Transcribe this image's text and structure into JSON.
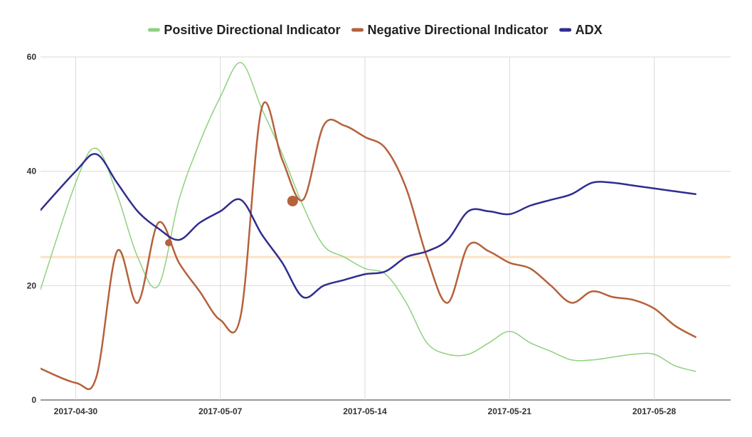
{
  "chart_data": {
    "type": "line",
    "title": "",
    "xlabel": "",
    "ylabel": "",
    "ylim": [
      0,
      60
    ],
    "y_ticks": [
      0,
      20,
      40,
      60
    ],
    "x_range": [
      -1.7,
      31.7
    ],
    "x_ticks": [
      {
        "label": "2017-04-30",
        "x": 0
      },
      {
        "label": "2017-05-07",
        "x": 7
      },
      {
        "label": "2017-05-14",
        "x": 14
      },
      {
        "label": "2017-05-21",
        "x": 21
      },
      {
        "label": "2017-05-28",
        "x": 28
      }
    ],
    "grid": true,
    "legend_position": "top",
    "reference_line": {
      "value": 25,
      "color": "#fce1c4"
    },
    "series": [
      {
        "name": "Positive Directional Indicator",
        "color": "#8fd17f",
        "width": 1.5,
        "points": [
          [
            -2,
            16
          ],
          [
            0,
            38
          ],
          [
            1,
            44
          ],
          [
            2,
            36
          ],
          [
            3,
            25
          ],
          [
            4,
            20
          ],
          [
            5,
            35
          ],
          [
            6,
            45
          ],
          [
            7,
            53
          ],
          [
            8,
            59
          ],
          [
            9,
            51
          ],
          [
            10,
            43
          ],
          [
            11,
            34
          ],
          [
            12,
            27
          ],
          [
            13,
            25
          ],
          [
            14,
            23
          ],
          [
            15,
            22
          ],
          [
            16,
            17
          ],
          [
            17,
            10
          ],
          [
            18,
            8
          ],
          [
            19,
            8
          ],
          [
            20,
            10
          ],
          [
            21,
            12
          ],
          [
            22,
            10
          ],
          [
            23,
            8.5
          ],
          [
            24,
            7
          ],
          [
            25,
            7
          ],
          [
            26,
            7.5
          ],
          [
            27,
            8
          ],
          [
            28,
            8
          ],
          [
            29,
            6
          ],
          [
            30,
            5
          ]
        ]
      },
      {
        "name": "Negative Directional Indicator",
        "color": "#b5613c",
        "width": 2.5,
        "points": [
          [
            -2,
            6
          ],
          [
            0,
            3
          ],
          [
            1,
            4
          ],
          [
            2,
            26
          ],
          [
            3,
            17
          ],
          [
            4,
            31
          ],
          [
            5,
            24
          ],
          [
            6,
            19
          ],
          [
            7,
            14
          ],
          [
            8,
            15
          ],
          [
            9,
            51
          ],
          [
            10,
            42
          ],
          [
            11,
            35
          ],
          [
            12,
            48
          ],
          [
            13,
            48
          ],
          [
            14,
            46
          ],
          [
            15,
            44
          ],
          [
            16,
            37
          ],
          [
            17,
            25
          ],
          [
            18,
            17
          ],
          [
            19,
            27
          ],
          [
            20,
            26
          ],
          [
            21,
            24
          ],
          [
            22,
            23
          ],
          [
            23,
            20
          ],
          [
            24,
            17
          ],
          [
            25,
            19
          ],
          [
            26,
            18
          ],
          [
            27,
            17.5
          ],
          [
            28,
            16
          ],
          [
            29,
            13
          ],
          [
            30,
            11
          ]
        ]
      },
      {
        "name": "ADX",
        "color": "#2f2d8e",
        "width": 2.5,
        "points": [
          [
            -2,
            32
          ],
          [
            0,
            40
          ],
          [
            1,
            43
          ],
          [
            2,
            38
          ],
          [
            3,
            33
          ],
          [
            4,
            30
          ],
          [
            5,
            28
          ],
          [
            6,
            31
          ],
          [
            7,
            33
          ],
          [
            8,
            35
          ],
          [
            9,
            29
          ],
          [
            10,
            24
          ],
          [
            11,
            18
          ],
          [
            12,
            20
          ],
          [
            13,
            21
          ],
          [
            14,
            22
          ],
          [
            15,
            22.5
          ],
          [
            16,
            25
          ],
          [
            17,
            26
          ],
          [
            18,
            28
          ],
          [
            19,
            33
          ],
          [
            20,
            33
          ],
          [
            21,
            32.5
          ],
          [
            22,
            34
          ],
          [
            23,
            35
          ],
          [
            24,
            36
          ],
          [
            25,
            38
          ],
          [
            26,
            38
          ],
          [
            27,
            37.5
          ],
          [
            28,
            37
          ],
          [
            29,
            36.5
          ],
          [
            30,
            36
          ]
        ]
      }
    ],
    "markers": [
      {
        "series": "Negative Directional Indicator",
        "x": 4.5,
        "y": 27.5,
        "size": "small"
      },
      {
        "series": "Negative Directional Indicator",
        "x": 10.5,
        "y": 34.8,
        "size": "large"
      }
    ]
  }
}
